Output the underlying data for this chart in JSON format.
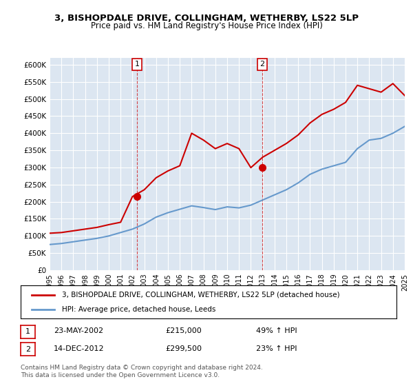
{
  "title": "3, BISHOPDALE DRIVE, COLLINGHAM, WETHERBY, LS22 5LP",
  "subtitle": "Price paid vs. HM Land Registry's House Price Index (HPI)",
  "legend_entry1": "3, BISHOPDALE DRIVE, COLLINGHAM, WETHERBY, LS22 5LP (detached house)",
  "legend_entry2": "HPI: Average price, detached house, Leeds",
  "annotation1_label": "1",
  "annotation1_date": "23-MAY-2002",
  "annotation1_price": "£215,000",
  "annotation1_hpi": "49% ↑ HPI",
  "annotation2_label": "2",
  "annotation2_date": "14-DEC-2012",
  "annotation2_price": "£299,500",
  "annotation2_hpi": "23% ↑ HPI",
  "copyright": "Contains HM Land Registry data © Crown copyright and database right 2024.\nThis data is licensed under the Open Government Licence v3.0.",
  "hpi_color": "#6699cc",
  "price_color": "#cc0000",
  "marker_color": "#cc0000",
  "bg_color": "#dce6f1",
  "plot_bg": "#ffffff",
  "ylim": [
    0,
    620000
  ],
  "yticks": [
    0,
    50000,
    100000,
    150000,
    200000,
    250000,
    300000,
    350000,
    400000,
    450000,
    500000,
    550000,
    600000
  ],
  "hpi_x": [
    1995,
    1996,
    1997,
    1998,
    1999,
    2000,
    2001,
    2002,
    2003,
    2004,
    2005,
    2006,
    2007,
    2008,
    2009,
    2010,
    2011,
    2012,
    2013,
    2014,
    2015,
    2016,
    2017,
    2018,
    2019,
    2020,
    2021,
    2022,
    2023,
    2024,
    2025
  ],
  "hpi_y": [
    75000,
    78000,
    83000,
    88000,
    93000,
    100000,
    110000,
    120000,
    135000,
    155000,
    168000,
    178000,
    188000,
    183000,
    177000,
    185000,
    182000,
    190000,
    205000,
    220000,
    235000,
    255000,
    280000,
    295000,
    305000,
    315000,
    355000,
    380000,
    385000,
    400000,
    420000
  ],
  "price_x": [
    1995,
    1996,
    1997,
    1998,
    1999,
    2000,
    2001,
    2002,
    2003,
    2004,
    2005,
    2006,
    2007,
    2008,
    2009,
    2010,
    2011,
    2012,
    2013,
    2014,
    2015,
    2016,
    2017,
    2018,
    2019,
    2020,
    2021,
    2022,
    2023,
    2024,
    2025
  ],
  "price_y": [
    108000,
    110000,
    115000,
    120000,
    125000,
    133000,
    140000,
    215000,
    235000,
    270000,
    290000,
    305000,
    400000,
    380000,
    355000,
    370000,
    355000,
    299500,
    330000,
    350000,
    370000,
    395000,
    430000,
    455000,
    470000,
    490000,
    540000,
    530000,
    520000,
    545000,
    510000
  ],
  "sale1_x": 2002.4,
  "sale1_y": 215000,
  "sale2_x": 2012.95,
  "sale2_y": 299500,
  "xmin": 1995,
  "xmax": 2025
}
